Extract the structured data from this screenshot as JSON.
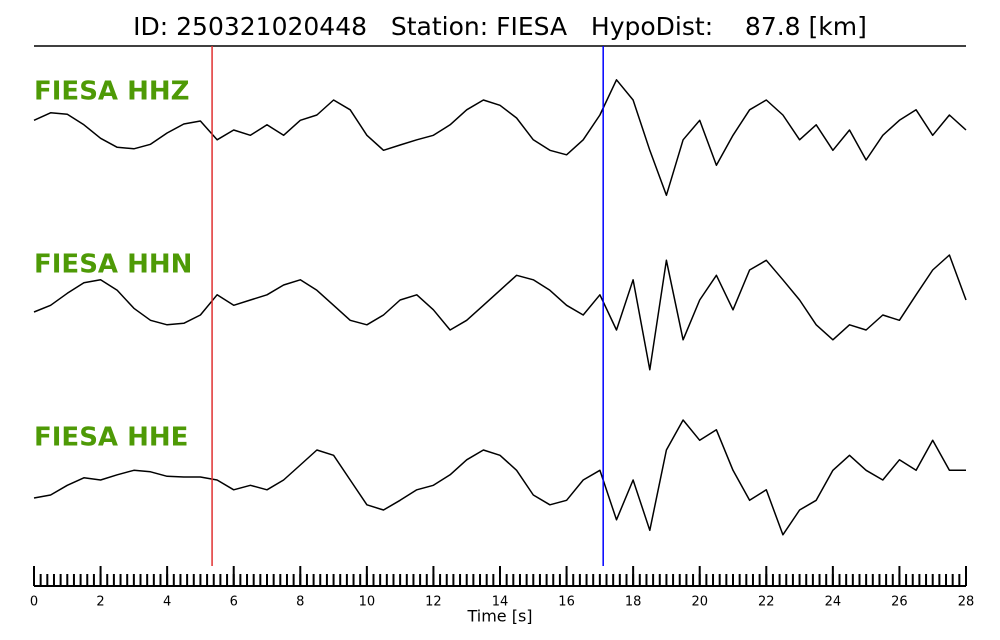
{
  "chart_data": {
    "type": "line",
    "title": "ID: 250321020448   Station: FIESA   HypoDist:    87.8 [km]",
    "xlabel": "Time [s]",
    "x": [
      0,
      0.5,
      1,
      1.5,
      2,
      2.5,
      3,
      3.5,
      4,
      4.5,
      5,
      5.5,
      6,
      6.5,
      7,
      7.5,
      8,
      8.5,
      9,
      9.5,
      10,
      10.5,
      11,
      11.5,
      12,
      12.5,
      13,
      13.5,
      14,
      14.5,
      15,
      15.5,
      16,
      16.5,
      17,
      17.5,
      18,
      18.5,
      19,
      19.5,
      20,
      20.5,
      21,
      21.5,
      22,
      22.5,
      23,
      23.5,
      24,
      24.5,
      25,
      25.5,
      26,
      26.5,
      27,
      27.5,
      28
    ],
    "xlim": [
      0,
      28
    ],
    "xticks": [
      0,
      2,
      4,
      6,
      8,
      10,
      12,
      14,
      16,
      18,
      20,
      22,
      24,
      26,
      28
    ],
    "xminor": 0.2,
    "ylim": [
      -1,
      1
    ],
    "label_color": "#4e9a06",
    "vlines": [
      {
        "x": 5.35,
        "color": "#e03030"
      },
      {
        "x": 17.1,
        "color": "#0000ff"
      }
    ],
    "series": [
      {
        "name": "FIESA HHZ",
        "color": "#000000",
        "values": [
          0.13,
          0.23,
          0.21,
          0.07,
          -0.11,
          -0.23,
          -0.25,
          -0.19,
          -0.04,
          0.08,
          0.12,
          -0.13,
          0,
          -0.07,
          0.07,
          -0.07,
          0.13,
          0.2,
          0.4,
          0.27,
          -0.07,
          -0.27,
          -0.2,
          -0.13,
          -0.07,
          0.07,
          0.27,
          0.4,
          0.33,
          0.16,
          -0.13,
          -0.27,
          -0.33,
          -0.13,
          0.2,
          0.67,
          0.4,
          -0.27,
          -0.87,
          -0.13,
          0.13,
          -0.47,
          -0.07,
          0.27,
          0.4,
          0.2,
          -0.13,
          0.07,
          -0.27,
          0,
          -0.4,
          -0.07,
          0.13,
          0.27,
          -0.07,
          0.2,
          0
        ]
      },
      {
        "name": "FIESA HHN",
        "color": "#000000",
        "values": [
          -0.16,
          -0.07,
          0.09,
          0.23,
          0.27,
          0.13,
          -0.11,
          -0.27,
          -0.33,
          -0.31,
          -0.2,
          0.07,
          -0.07,
          0,
          0.07,
          0.2,
          0.27,
          0.13,
          -0.07,
          -0.27,
          -0.33,
          -0.2,
          0,
          0.07,
          -0.13,
          -0.4,
          -0.27,
          -0.07,
          0.13,
          0.33,
          0.27,
          0.13,
          -0.07,
          -0.2,
          0.07,
          -0.4,
          0.27,
          -0.93,
          0.53,
          -0.53,
          0,
          0.33,
          -0.13,
          0.4,
          0.53,
          0.27,
          0,
          -0.33,
          -0.53,
          -0.33,
          -0.4,
          -0.2,
          -0.27,
          0.07,
          0.4,
          0.6,
          0
        ]
      },
      {
        "name": "FIESA HHE",
        "color": "#000000",
        "values": [
          -0.24,
          -0.2,
          -0.07,
          0.03,
          0,
          0.07,
          0.13,
          0.11,
          0.05,
          0.04,
          0.04,
          0,
          -0.13,
          -0.07,
          -0.13,
          0,
          0.2,
          0.4,
          0.33,
          0,
          -0.33,
          -0.4,
          -0.27,
          -0.13,
          -0.07,
          0.07,
          0.27,
          0.4,
          0.33,
          0.13,
          -0.2,
          -0.33,
          -0.27,
          0,
          0.13,
          -0.53,
          0,
          -0.67,
          0.4,
          0.8,
          0.53,
          0.67,
          0.13,
          -0.27,
          -0.13,
          -0.73,
          -0.4,
          -0.27,
          0.13,
          0.33,
          0.13,
          0,
          0.27,
          0.13,
          0.53,
          0.13,
          0.13
        ]
      }
    ]
  }
}
